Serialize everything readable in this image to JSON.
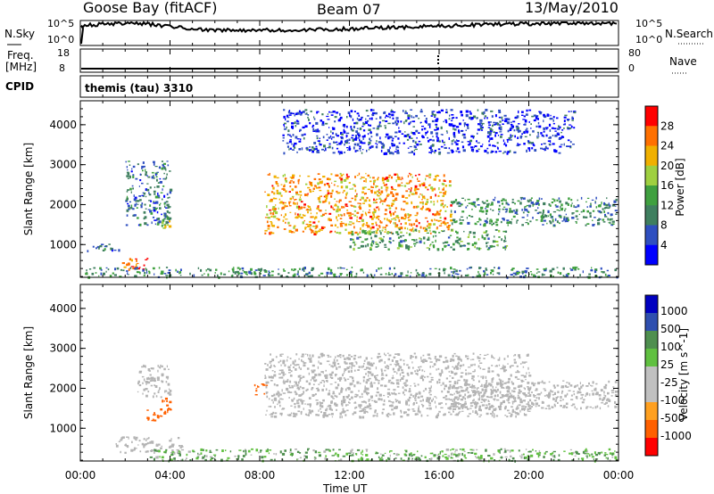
{
  "header": {
    "station": "Goose Bay (fitACF)",
    "beam": "Beam 07",
    "date": "13/May/2010"
  },
  "noise_panel": {
    "left_label": "N.Sky",
    "right_label": "N.Search",
    "left_ticks": [
      "10^5",
      "10^0"
    ],
    "right_ticks": [
      "10^5",
      "10^0"
    ]
  },
  "freq_panel": {
    "left_label_line1": "Freq.",
    "left_label_line2": "[MHz]",
    "right_label": "Nave",
    "left_ticks": [
      "18",
      "8"
    ],
    "right_ticks": [
      "80",
      "0"
    ]
  },
  "cpid": {
    "label": "CPID",
    "value": "themis (tau) 3310"
  },
  "time_axis": {
    "label": "Time UT",
    "ticks": [
      "00:00",
      "04:00",
      "08:00",
      "12:00",
      "16:00",
      "20:00",
      "00:00"
    ]
  },
  "colors": {
    "power_scale": [
      "#0000ff",
      "#2f4fc0",
      "#3f7f5f",
      "#3fa03f",
      "#9fd040",
      "#f0b000",
      "#ff7000",
      "#ff0000"
    ],
    "velocity_scale": [
      "#ff0000",
      "#ff6000",
      "#ffa020",
      "#c0c0c0",
      "#c0c0c0",
      "#60c040",
      "#4f8f4f",
      "#2f4faf",
      "#0000c0"
    ],
    "ground_scatter": "#b4b4b4"
  },
  "chart_data": [
    {
      "type": "heatmap",
      "title": "",
      "xlabel": "",
      "ylabel": "Slant Range [km]",
      "xlim": [
        0,
        24
      ],
      "ylim": [
        180,
        4600
      ],
      "yticks": [
        "1000",
        "2000",
        "3000",
        "4000"
      ],
      "colorbar": {
        "label": "Power [dB]",
        "ticks": [
          "28",
          "24",
          "20",
          "16",
          "12",
          "8",
          "4"
        ],
        "range": [
          0,
          30
        ]
      },
      "regions": [
        {
          "name": "early echoes near 1000 km",
          "t": [
            0.3,
            1.8
          ],
          "range_km": [
            850,
            1050
          ],
          "value": 8
        },
        {
          "name": "scatter 2000-3000 km",
          "t": [
            2.0,
            4.0
          ],
          "range_km": [
            1500,
            3100
          ],
          "value": 8
        },
        {
          "name": "patch 1500 km",
          "t": [
            3.6,
            4.0
          ],
          "range_km": [
            1350,
            1650
          ],
          "value": 16
        },
        {
          "name": "strong echo 500 km",
          "t": [
            1.8,
            3.0
          ],
          "range_km": [
            400,
            700
          ],
          "value": 26
        },
        {
          "name": "near range band",
          "t": [
            0.2,
            23.9
          ],
          "range_km": [
            200,
            450
          ],
          "value": 10
        },
        {
          "name": "main arc",
          "t": [
            8.2,
            16.5
          ],
          "range_km": [
            1300,
            2800
          ],
          "value": 22
        },
        {
          "name": "lower arc",
          "t": [
            12.0,
            19.0
          ],
          "range_km": [
            900,
            1400
          ],
          "value": 12
        },
        {
          "name": "late band",
          "t": [
            16.5,
            23.9
          ],
          "range_km": [
            1500,
            2200
          ],
          "value": 10
        },
        {
          "name": "high range scatter",
          "t": [
            9.0,
            22.0
          ],
          "range_km": [
            3300,
            4400
          ],
          "value": 4
        }
      ]
    },
    {
      "type": "heatmap",
      "title": "",
      "xlabel": "Time UT",
      "ylabel": "Slant Range [km]",
      "xlim": [
        0,
        24
      ],
      "ylim": [
        180,
        4600
      ],
      "yticks": [
        "1000",
        "2000",
        "3000",
        "4000"
      ],
      "colorbar": {
        "label": "Velocity [m s^-1]",
        "ticks": [
          "1000",
          "500",
          "100",
          "25",
          "-25",
          "-100",
          "-500",
          "-1000"
        ],
        "range": [
          -1000,
          1000
        ]
      },
      "regions": [
        {
          "name": "ground scatter band",
          "t": [
            1.5,
            4.5
          ],
          "range_km": [
            400,
            800
          ],
          "value": 0
        },
        {
          "name": "ground scatter 2000 km",
          "t": [
            2.5,
            4.0
          ],
          "range_km": [
            1800,
            2600
          ],
          "value": 0
        },
        {
          "name": "flow patch 1400 km",
          "t": [
            2.8,
            3.3
          ],
          "range_km": [
            1200,
            1500
          ],
          "value": -300
        },
        {
          "name": "flow patch 1600 km",
          "t": [
            3.4,
            4.0
          ],
          "range_km": [
            1300,
            1800
          ],
          "value": -400
        },
        {
          "name": "flow patch 2000 km",
          "t": [
            7.7,
            8.3
          ],
          "range_km": [
            1850,
            2150
          ],
          "value": -350
        },
        {
          "name": "main ground scatter arc",
          "t": [
            8.2,
            20.0
          ],
          "range_km": [
            1300,
            2900
          ],
          "value": 0
        },
        {
          "name": "late band",
          "t": [
            16.5,
            23.9
          ],
          "range_km": [
            1500,
            2200
          ],
          "value": 0
        },
        {
          "name": "near range green",
          "t": [
            3.0,
            23.9
          ],
          "range_km": [
            200,
            500
          ],
          "value": 80
        }
      ]
    }
  ]
}
